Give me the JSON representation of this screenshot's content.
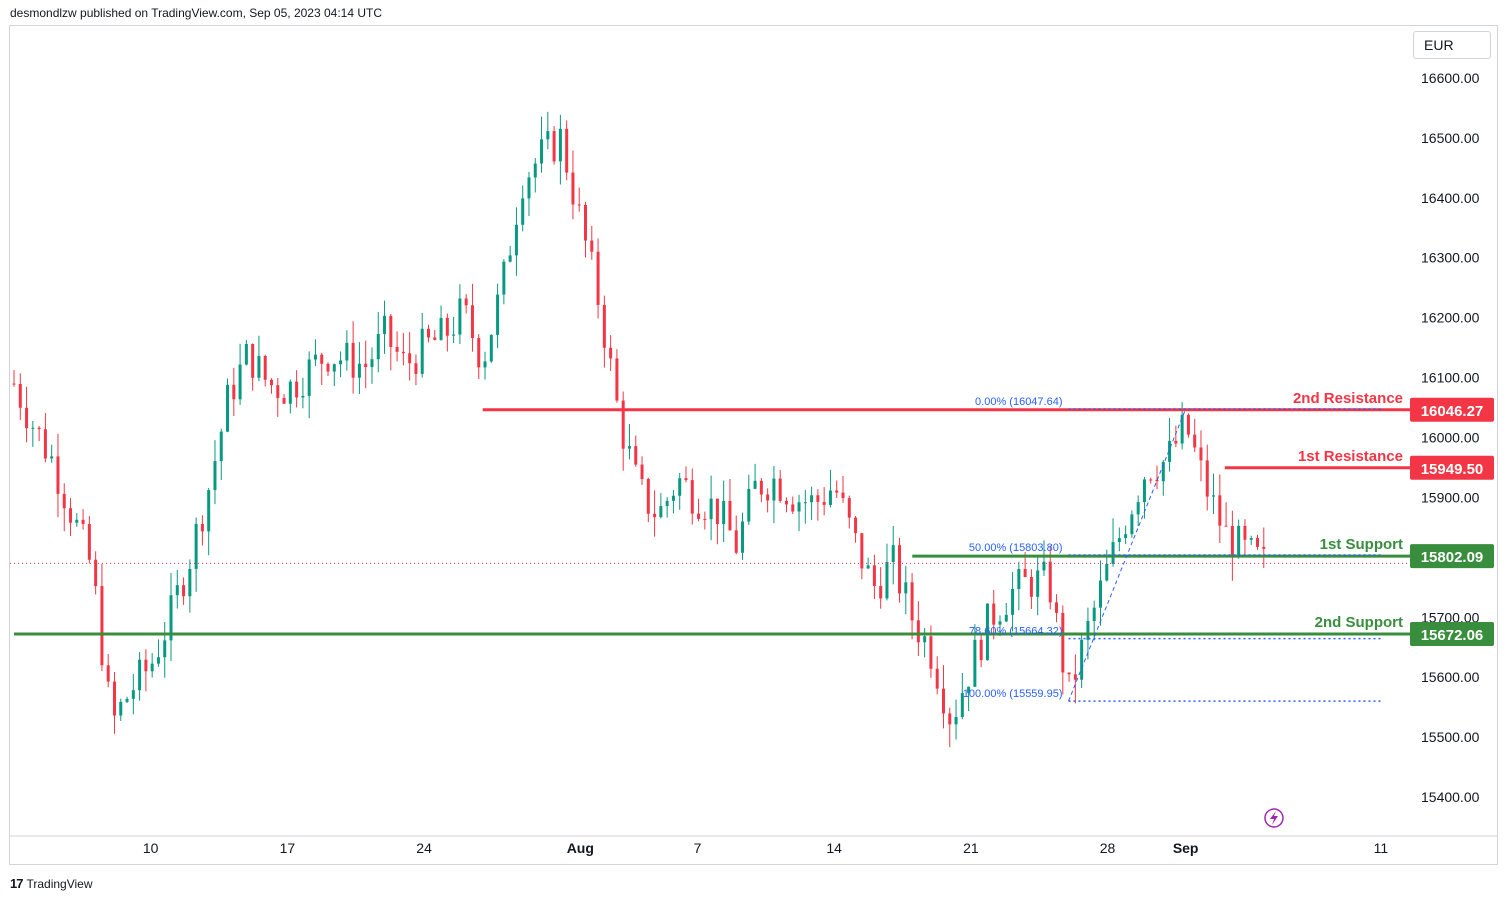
{
  "header": {
    "attribution": "desmondlzw published on TradingView.com, Sep 05, 2023 04:14 UTC"
  },
  "footer": {
    "brand": "TradingView",
    "logo_glyph": "17"
  },
  "currency_label": "EUR",
  "colors": {
    "bull": "#089981",
    "bear": "#f23645",
    "resistance": "#f23645",
    "support": "#388e3c",
    "fib": "#2962ff",
    "axis_text": "#131722",
    "grid": "#d1d4dc"
  },
  "chart_data": {
    "type": "candlestick",
    "title": "",
    "ylim": [
      15380,
      16630
    ],
    "yticks": [
      15400,
      15500,
      15600,
      15700,
      15800,
      15900,
      16000,
      16100,
      16200,
      16300,
      16400,
      16500,
      16600
    ],
    "ytick_labels": [
      "15400.00",
      "15500.00",
      "15600.00",
      "15700.00",
      "15800.00",
      "15900.00",
      "16000.00",
      "16100.00",
      "16200.00",
      "16300.00",
      "16400.00",
      "16500.00",
      "16600.00"
    ],
    "x_domain": [
      "2023-07-03",
      "2023-09-13"
    ],
    "xticks": [
      {
        "date": "2023-07-10",
        "label": "10",
        "bold": false
      },
      {
        "date": "2023-07-17",
        "label": "17",
        "bold": false
      },
      {
        "date": "2023-07-24",
        "label": "24",
        "bold": false
      },
      {
        "date": "2023-08-01",
        "label": "Aug",
        "bold": true
      },
      {
        "date": "2023-08-07",
        "label": "7",
        "bold": false
      },
      {
        "date": "2023-08-14",
        "label": "14",
        "bold": false
      },
      {
        "date": "2023-08-21",
        "label": "21",
        "bold": false
      },
      {
        "date": "2023-08-28",
        "label": "28",
        "bold": false
      },
      {
        "date": "2023-09-01",
        "label": "Sep",
        "bold": true
      },
      {
        "date": "2023-09-11",
        "label": "11",
        "bold": false
      }
    ],
    "close_path": [
      [
        "2023-07-03",
        16090
      ],
      [
        "2023-07-04",
        16020
      ],
      [
        "2023-07-05",
        15960
      ],
      [
        "2023-07-06",
        15870
      ],
      [
        "2023-07-07",
        15780
      ],
      [
        "2023-07-08",
        15520
      ],
      [
        "2023-07-09",
        15580
      ],
      [
        "2023-07-10",
        15620
      ],
      [
        "2023-07-11",
        15700
      ],
      [
        "2023-07-12",
        15800
      ],
      [
        "2023-07-13",
        15920
      ],
      [
        "2023-07-14",
        16070
      ],
      [
        "2023-07-15",
        16140
      ],
      [
        "2023-07-16",
        16090
      ],
      [
        "2023-07-17",
        16080
      ],
      [
        "2023-07-18",
        16110
      ],
      [
        "2023-07-19",
        16140
      ],
      [
        "2023-07-20",
        16130
      ],
      [
        "2023-07-21",
        16120
      ],
      [
        "2023-07-22",
        16170
      ],
      [
        "2023-07-23",
        16120
      ],
      [
        "2023-07-24",
        16150
      ],
      [
        "2023-07-25",
        16170
      ],
      [
        "2023-07-26",
        16210
      ],
      [
        "2023-07-27",
        16130
      ],
      [
        "2023-07-28",
        16250
      ],
      [
        "2023-07-29",
        16430
      ],
      [
        "2023-07-30",
        16470
      ],
      [
        "2023-07-31",
        16500
      ],
      [
        "2023-08-01",
        16360
      ],
      [
        "2023-08-02",
        16220
      ],
      [
        "2023-08-03",
        16030
      ],
      [
        "2023-08-04",
        15910
      ],
      [
        "2023-08-05",
        15870
      ],
      [
        "2023-08-06",
        15930
      ],
      [
        "2023-08-07",
        15900
      ],
      [
        "2023-08-08",
        15880
      ],
      [
        "2023-08-09",
        15820
      ],
      [
        "2023-08-10",
        15920
      ],
      [
        "2023-08-11",
        15930
      ],
      [
        "2023-08-12",
        15900
      ],
      [
        "2023-08-13",
        15890
      ],
      [
        "2023-08-14",
        15920
      ],
      [
        "2023-08-15",
        15830
      ],
      [
        "2023-08-16",
        15750
      ],
      [
        "2023-08-17",
        15790
      ],
      [
        "2023-08-18",
        15700
      ],
      [
        "2023-08-19",
        15640
      ],
      [
        "2023-08-20",
        15530
      ],
      [
        "2023-08-21",
        15620
      ],
      [
        "2023-08-22",
        15700
      ],
      [
        "2023-08-23",
        15740
      ],
      [
        "2023-08-24",
        15760
      ],
      [
        "2023-08-25",
        15760
      ],
      [
        "2023-08-26",
        15570
      ],
      [
        "2023-08-27",
        15680
      ],
      [
        "2023-08-28",
        15780
      ],
      [
        "2023-08-29",
        15870
      ],
      [
        "2023-08-30",
        15950
      ],
      [
        "2023-08-31",
        15960
      ],
      [
        "2023-09-01",
        16020
      ],
      [
        "2023-09-02",
        15920
      ],
      [
        "2023-09-03",
        15840
      ],
      [
        "2023-09-04",
        15810
      ],
      [
        "2023-09-05",
        15790
      ]
    ],
    "candle_count": 200,
    "levels": [
      {
        "label": "2nd Resistance",
        "value": 16046.27,
        "tag": "16046.27",
        "color": "resistance",
        "start": "2023-07-27"
      },
      {
        "label": "1st Resistance",
        "value": 15949.5,
        "tag": "15949.50",
        "color": "resistance",
        "start": "2023-09-03"
      },
      {
        "label": "1st Support",
        "value": 15802.09,
        "tag": "15802.09",
        "color": "support",
        "start": "2023-08-18"
      },
      {
        "label": "2nd Support",
        "value": 15672.06,
        "tag": "15672.06",
        "color": "support",
        "start": "2023-07-03"
      }
    ],
    "fib": [
      {
        "label": "0.00% (16047.64)",
        "value": 16047.64
      },
      {
        "label": "50.00% (15803.80)",
        "value": 15803.8
      },
      {
        "label": "78.60% (15664.32)",
        "value": 15664.32
      },
      {
        "label": "100.00% (15559.95)",
        "value": 15559.95
      }
    ],
    "fib_range": [
      "2023-08-26",
      "2023-09-11"
    ],
    "last_price": 15790
  }
}
